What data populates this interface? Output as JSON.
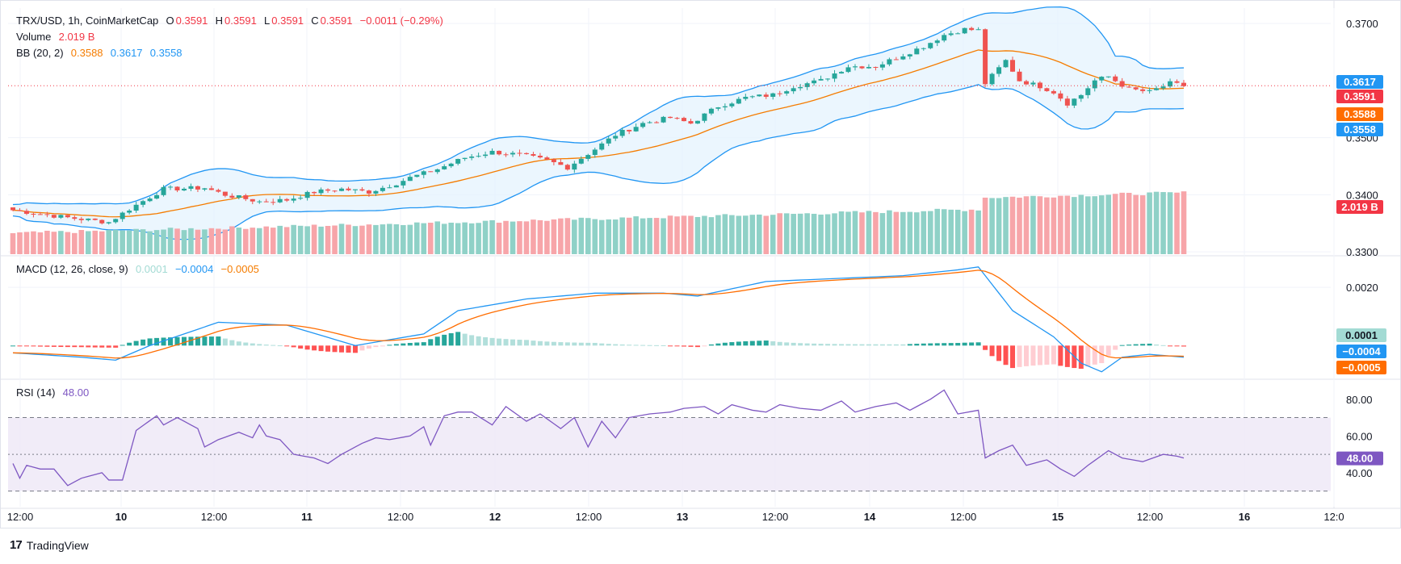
{
  "legend": {
    "symbol": "TRX/USD, 1h, CoinMarketCap",
    "o_label": "O",
    "o_value": "0.3591",
    "h_label": "H",
    "h_value": "0.3591",
    "l_label": "L",
    "l_value": "0.3591",
    "c_label": "C",
    "c_value": "0.3591",
    "change": "−0.0011 (−0.29%)",
    "volume_label": "Volume",
    "volume_value": "2.019 B",
    "bb_label": "BB (20, 2)",
    "bb_basis": "0.3588",
    "bb_upper": "0.3617",
    "bb_lower": "0.3558",
    "macd_label": "MACD (12, 26, close, 9)",
    "macd_hist": "0.0001",
    "macd_line": "−0.0004",
    "macd_signal": "−0.0005",
    "rsi_label": "RSI (14)",
    "rsi_value": "48.00"
  },
  "footer": {
    "brand": "TradingView",
    "logo": "17"
  },
  "colors": {
    "up": "#26a69a",
    "down": "#ef5350",
    "up_vol": "#8fd1c7",
    "down_vol": "#f7a5a9",
    "bb_basis": "#f57c00",
    "bb_band": "#2196f3",
    "bb_fill": "#e3f2fd",
    "macd": "#2196f3",
    "signal": "#ff6d00",
    "rsi": "#7e57c2",
    "rsi_fill": "#ede7f6",
    "grid": "#f0f3fa",
    "axis_text": "#131722"
  },
  "chart_data": {
    "type": "candlestick",
    "symbol": "TRX/USD",
    "interval": "1h",
    "price_axis": {
      "ticks": [
        "0.3700",
        "0.3500",
        "0.3400",
        "0.3300"
      ],
      "range": [
        0.3296,
        0.3727
      ]
    },
    "price_labels": [
      {
        "value": 0.3617,
        "text": "0.3617",
        "color": "#2196f3"
      },
      {
        "value": 0.3591,
        "text": "0.3591",
        "color": "#f23645"
      },
      {
        "value": 0.3588,
        "text": "0.3588",
        "color": "#ff6d00"
      },
      {
        "value": 0.3558,
        "text": "0.3558",
        "color": "#2196f3"
      }
    ],
    "volume_label": {
      "text": "2.019 B",
      "color": "#f23645"
    },
    "macd_axis": {
      "ticks": [
        "0.0020"
      ],
      "range": [
        -0.0011,
        0.003
      ]
    },
    "macd_labels": [
      {
        "value": 0.0001,
        "text": "0.0001",
        "color": "#a3dbd4",
        "text_color": "#131722"
      },
      {
        "value": -0.0004,
        "text": "−0.0004",
        "color": "#2196f3",
        "text_color": "#ffffff"
      },
      {
        "value": -0.0005,
        "text": "−0.0005",
        "color": "#ff6d00",
        "text_color": "#ffffff"
      }
    ],
    "rsi_axis": {
      "ticks": [
        "80.00",
        "60.00",
        "40.00"
      ],
      "range": [
        25,
        90
      ],
      "upper": 70,
      "lower": 30,
      "mid": 50
    },
    "rsi_label": {
      "value": 48.0,
      "text": "48.00",
      "color": "#7e57c2"
    },
    "time_axis": [
      "12:00",
      "10",
      "12:00",
      "11",
      "12:00",
      "12",
      "12:00",
      "13",
      "12:00",
      "14",
      "12:00",
      "15",
      "12:00",
      "16",
      "12:0"
    ],
    "candle_anchors": [
      [
        0,
        0.3373
      ],
      [
        8,
        0.336
      ],
      [
        14,
        0.3352
      ],
      [
        17,
        0.3375
      ],
      [
        22,
        0.341
      ],
      [
        28,
        0.3412
      ],
      [
        31,
        0.34
      ],
      [
        36,
        0.3388
      ],
      [
        40,
        0.3391
      ],
      [
        44,
        0.3405
      ],
      [
        48,
        0.341
      ],
      [
        52,
        0.3405
      ],
      [
        56,
        0.342
      ],
      [
        58,
        0.343
      ],
      [
        62,
        0.3445
      ],
      [
        66,
        0.3465
      ],
      [
        70,
        0.3475
      ],
      [
        74,
        0.347
      ],
      [
        78,
        0.346
      ],
      [
        81,
        0.3448
      ],
      [
        85,
        0.348
      ],
      [
        88,
        0.3505
      ],
      [
        92,
        0.3525
      ],
      [
        96,
        0.3535
      ],
      [
        99,
        0.3525
      ],
      [
        103,
        0.3555
      ],
      [
        107,
        0.357
      ],
      [
        111,
        0.3575
      ],
      [
        114,
        0.359
      ],
      [
        118,
        0.36
      ],
      [
        122,
        0.3625
      ],
      [
        126,
        0.3625
      ],
      [
        129,
        0.364
      ],
      [
        133,
        0.366
      ],
      [
        136,
        0.368
      ],
      [
        139,
        0.369
      ],
      [
        141,
        0.3688
      ],
      [
        142,
        0.3595
      ],
      [
        145,
        0.3635
      ],
      [
        147,
        0.36
      ],
      [
        150,
        0.359
      ],
      [
        152,
        0.358
      ],
      [
        154,
        0.356
      ],
      [
        156,
        0.3575
      ],
      [
        158,
        0.36
      ],
      [
        160,
        0.3607
      ],
      [
        163,
        0.3585
      ],
      [
        166,
        0.358
      ],
      [
        169,
        0.3595
      ],
      [
        171,
        0.3591
      ]
    ],
    "rsi_anchors": [
      [
        0,
        45
      ],
      [
        1,
        37
      ],
      [
        2,
        44
      ],
      [
        4,
        42
      ],
      [
        6,
        42
      ],
      [
        8,
        33
      ],
      [
        10,
        37
      ],
      [
        13,
        40
      ],
      [
        14,
        36
      ],
      [
        16,
        36
      ],
      [
        18,
        63
      ],
      [
        21,
        71
      ],
      [
        22,
        66
      ],
      [
        24,
        70
      ],
      [
        27,
        64
      ],
      [
        28,
        54
      ],
      [
        30,
        58
      ],
      [
        33,
        62
      ],
      [
        35,
        59
      ],
      [
        36,
        66
      ],
      [
        37,
        60
      ],
      [
        39,
        58
      ],
      [
        41,
        50
      ],
      [
        44,
        48
      ],
      [
        46,
        45
      ],
      [
        48,
        50
      ],
      [
        51,
        56
      ],
      [
        53,
        59
      ],
      [
        55,
        58
      ],
      [
        58,
        60
      ],
      [
        60,
        65
      ],
      [
        61,
        55
      ],
      [
        63,
        71
      ],
      [
        65,
        73
      ],
      [
        67,
        73
      ],
      [
        70,
        66
      ],
      [
        72,
        76
      ],
      [
        75,
        68
      ],
      [
        77,
        72
      ],
      [
        80,
        64
      ],
      [
        82,
        70
      ],
      [
        84,
        54
      ],
      [
        86,
        68
      ],
      [
        88,
        59
      ],
      [
        90,
        70
      ],
      [
        93,
        72
      ],
      [
        96,
        73
      ],
      [
        98,
        75
      ],
      [
        101,
        76
      ],
      [
        103,
        72
      ],
      [
        105,
        77
      ],
      [
        108,
        74
      ],
      [
        110,
        73
      ],
      [
        112,
        77
      ],
      [
        115,
        75
      ],
      [
        118,
        74
      ],
      [
        121,
        79
      ],
      [
        123,
        73
      ],
      [
        126,
        76
      ],
      [
        129,
        78
      ],
      [
        131,
        74
      ],
      [
        134,
        80
      ],
      [
        136,
        85
      ],
      [
        138,
        72
      ],
      [
        141,
        74
      ],
      [
        142,
        48
      ],
      [
        144,
        52
      ],
      [
        146,
        55
      ],
      [
        148,
        44
      ],
      [
        151,
        47
      ],
      [
        153,
        42
      ],
      [
        155,
        38
      ],
      [
        157,
        44
      ],
      [
        160,
        52
      ],
      [
        162,
        48
      ],
      [
        165,
        46
      ],
      [
        168,
        50
      ],
      [
        170,
        49
      ],
      [
        171,
        48
      ]
    ],
    "macd_anchors": [
      [
        0,
        -0.00025
      ],
      [
        10,
        -0.0004
      ],
      [
        15,
        -0.0005
      ],
      [
        20,
        0.0
      ],
      [
        30,
        0.0008
      ],
      [
        40,
        0.0007
      ],
      [
        50,
        0.0
      ],
      [
        60,
        0.0004
      ],
      [
        65,
        0.0012
      ],
      [
        75,
        0.0016
      ],
      [
        85,
        0.0018
      ],
      [
        95,
        0.0018
      ],
      [
        100,
        0.0017
      ],
      [
        110,
        0.0022
      ],
      [
        120,
        0.0023
      ],
      [
        130,
        0.0024
      ],
      [
        138,
        0.0026
      ],
      [
        141,
        0.0027
      ],
      [
        146,
        0.0012
      ],
      [
        152,
        0.0003
      ],
      [
        156,
        -0.0006
      ],
      [
        159,
        -0.0009
      ],
      [
        162,
        -0.0004
      ],
      [
        166,
        -0.0003
      ],
      [
        171,
        -0.0004
      ]
    ]
  }
}
